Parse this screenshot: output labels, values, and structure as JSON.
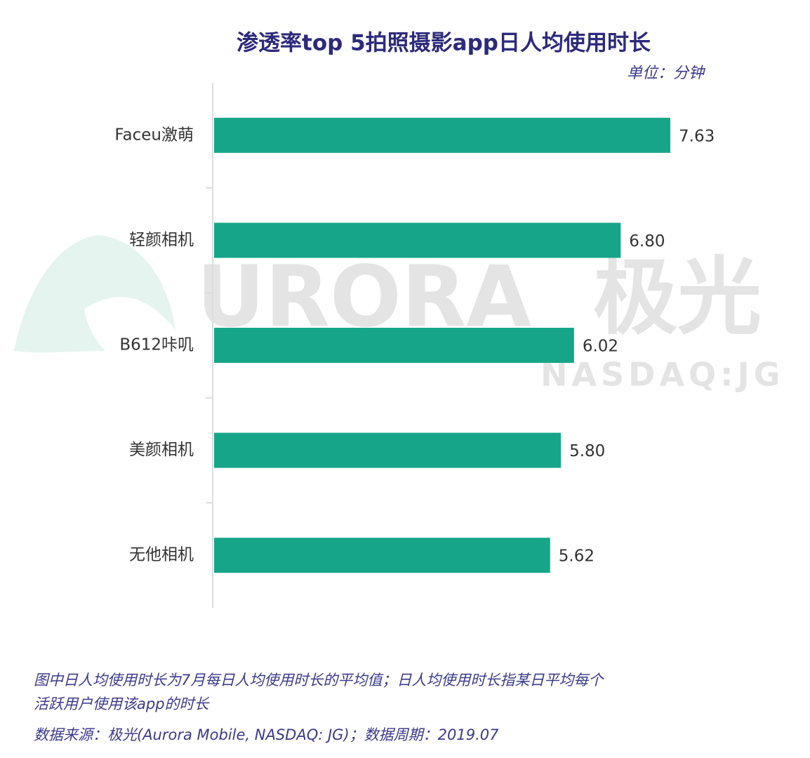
{
  "chart_data": {
    "type": "bar",
    "orientation": "horizontal",
    "title": "渗透率top 5拍照摄影app日人均使用时长",
    "unit": "单位：分钟",
    "categories": [
      "Faceu激萌",
      "轻颜相机",
      "B612咔叽",
      "美颜相机",
      "无他相机"
    ],
    "values": [
      7.63,
      6.8,
      6.02,
      5.8,
      5.62
    ],
    "value_labels": [
      "7.63",
      "6.80",
      "6.02",
      "5.80",
      "5.62"
    ],
    "color": "#17a589",
    "notes": [
      "图中日人均使用时长为7月每日人均使用时长的平均值；日人均使用时长指某日平均每个",
      "活跃用户使用该app的时长"
    ],
    "source": "数据来源：极光(Aurora Mobile, NASDAQ: JG)；数据周期：2019.07",
    "watermark": [
      "URORA",
      "极光",
      "NASDAQ:JG"
    ]
  }
}
